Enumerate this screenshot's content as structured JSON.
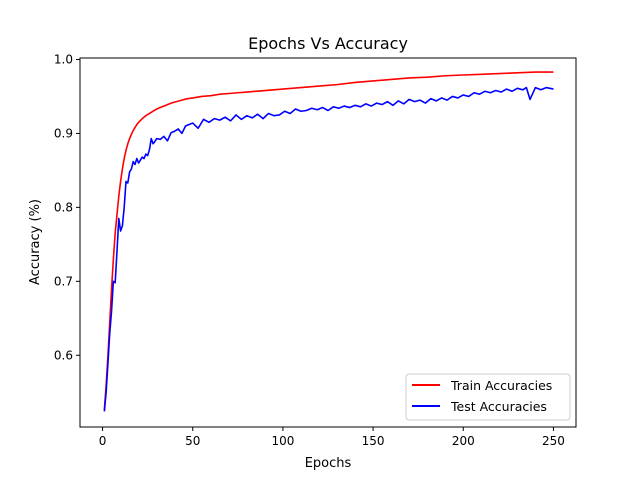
{
  "chart_data": {
    "type": "line",
    "title": "Epochs Vs Accuracy",
    "xlabel": "Epochs",
    "ylabel": "Accuracy (%)",
    "xlim": [
      -12.5,
      262.5
    ],
    "ylim": [
      0.503,
      1.002
    ],
    "xticks": [
      0,
      50,
      100,
      150,
      200,
      250
    ],
    "yticks": [
      0.6,
      0.7,
      0.8,
      0.9,
      1.0
    ],
    "ytick_labels": [
      "0.6",
      "0.7",
      "0.8",
      "0.9",
      "1.0"
    ],
    "grid": false,
    "legend_position": "lower-right",
    "colors": {
      "train": "#ff0000",
      "test": "#0000ff"
    },
    "series": [
      {
        "name": "Train Accuracies",
        "x": [
          1,
          2,
          3,
          4,
          5,
          6,
          7,
          8,
          9,
          10,
          11,
          12,
          13,
          14,
          15,
          16,
          17,
          18,
          19,
          20,
          22,
          24,
          26,
          28,
          30,
          32,
          35,
          38,
          41,
          44,
          47,
          50,
          55,
          60,
          65,
          70,
          75,
          80,
          85,
          90,
          95,
          100,
          110,
          120,
          130,
          140,
          150,
          160,
          170,
          180,
          190,
          200,
          210,
          220,
          230,
          240,
          250
        ],
        "values": [
          0.526,
          0.56,
          0.6,
          0.645,
          0.69,
          0.73,
          0.765,
          0.79,
          0.815,
          0.835,
          0.852,
          0.866,
          0.877,
          0.886,
          0.893,
          0.899,
          0.904,
          0.908,
          0.912,
          0.915,
          0.92,
          0.924,
          0.927,
          0.93,
          0.933,
          0.935,
          0.938,
          0.941,
          0.943,
          0.945,
          0.947,
          0.948,
          0.95,
          0.951,
          0.953,
          0.954,
          0.955,
          0.956,
          0.957,
          0.958,
          0.959,
          0.96,
          0.962,
          0.964,
          0.966,
          0.969,
          0.971,
          0.973,
          0.975,
          0.976,
          0.978,
          0.979,
          0.98,
          0.981,
          0.982,
          0.983,
          0.983
        ]
      },
      {
        "name": "Test Accuracies",
        "x": [
          1,
          2,
          3,
          4,
          5,
          6,
          7,
          8,
          9,
          10,
          11,
          12,
          13,
          14,
          15,
          16,
          17,
          18,
          19,
          20,
          21,
          22,
          23,
          24,
          25,
          26,
          27,
          28,
          29,
          30,
          32,
          34,
          36,
          38,
          40,
          42,
          44,
          46,
          48,
          50,
          53,
          56,
          59,
          62,
          65,
          68,
          71,
          74,
          77,
          80,
          83,
          86,
          89,
          92,
          95,
          98,
          101,
          104,
          107,
          110,
          113,
          116,
          119,
          122,
          125,
          128,
          131,
          134,
          137,
          140,
          143,
          146,
          149,
          152,
          155,
          158,
          161,
          164,
          167,
          170,
          173,
          176,
          179,
          182,
          185,
          188,
          191,
          194,
          197,
          200,
          203,
          206,
          209,
          212,
          215,
          218,
          221,
          224,
          227,
          230,
          233,
          235,
          237,
          240,
          243,
          246,
          250
        ],
        "values": [
          0.524,
          0.55,
          0.59,
          0.63,
          0.66,
          0.7,
          0.698,
          0.74,
          0.785,
          0.768,
          0.775,
          0.8,
          0.835,
          0.833,
          0.848,
          0.852,
          0.862,
          0.858,
          0.866,
          0.86,
          0.864,
          0.868,
          0.866,
          0.872,
          0.87,
          0.878,
          0.893,
          0.886,
          0.889,
          0.893,
          0.892,
          0.896,
          0.89,
          0.901,
          0.903,
          0.906,
          0.9,
          0.91,
          0.912,
          0.914,
          0.907,
          0.919,
          0.915,
          0.92,
          0.918,
          0.922,
          0.917,
          0.925,
          0.919,
          0.924,
          0.921,
          0.926,
          0.92,
          0.927,
          0.924,
          0.925,
          0.93,
          0.927,
          0.933,
          0.93,
          0.931,
          0.934,
          0.932,
          0.935,
          0.931,
          0.936,
          0.934,
          0.937,
          0.935,
          0.938,
          0.936,
          0.94,
          0.937,
          0.941,
          0.939,
          0.943,
          0.938,
          0.944,
          0.94,
          0.946,
          0.943,
          0.945,
          0.941,
          0.947,
          0.944,
          0.948,
          0.945,
          0.95,
          0.948,
          0.952,
          0.95,
          0.955,
          0.953,
          0.957,
          0.955,
          0.958,
          0.956,
          0.96,
          0.957,
          0.961,
          0.959,
          0.962,
          0.946,
          0.962,
          0.959,
          0.962,
          0.96
        ]
      }
    ]
  }
}
